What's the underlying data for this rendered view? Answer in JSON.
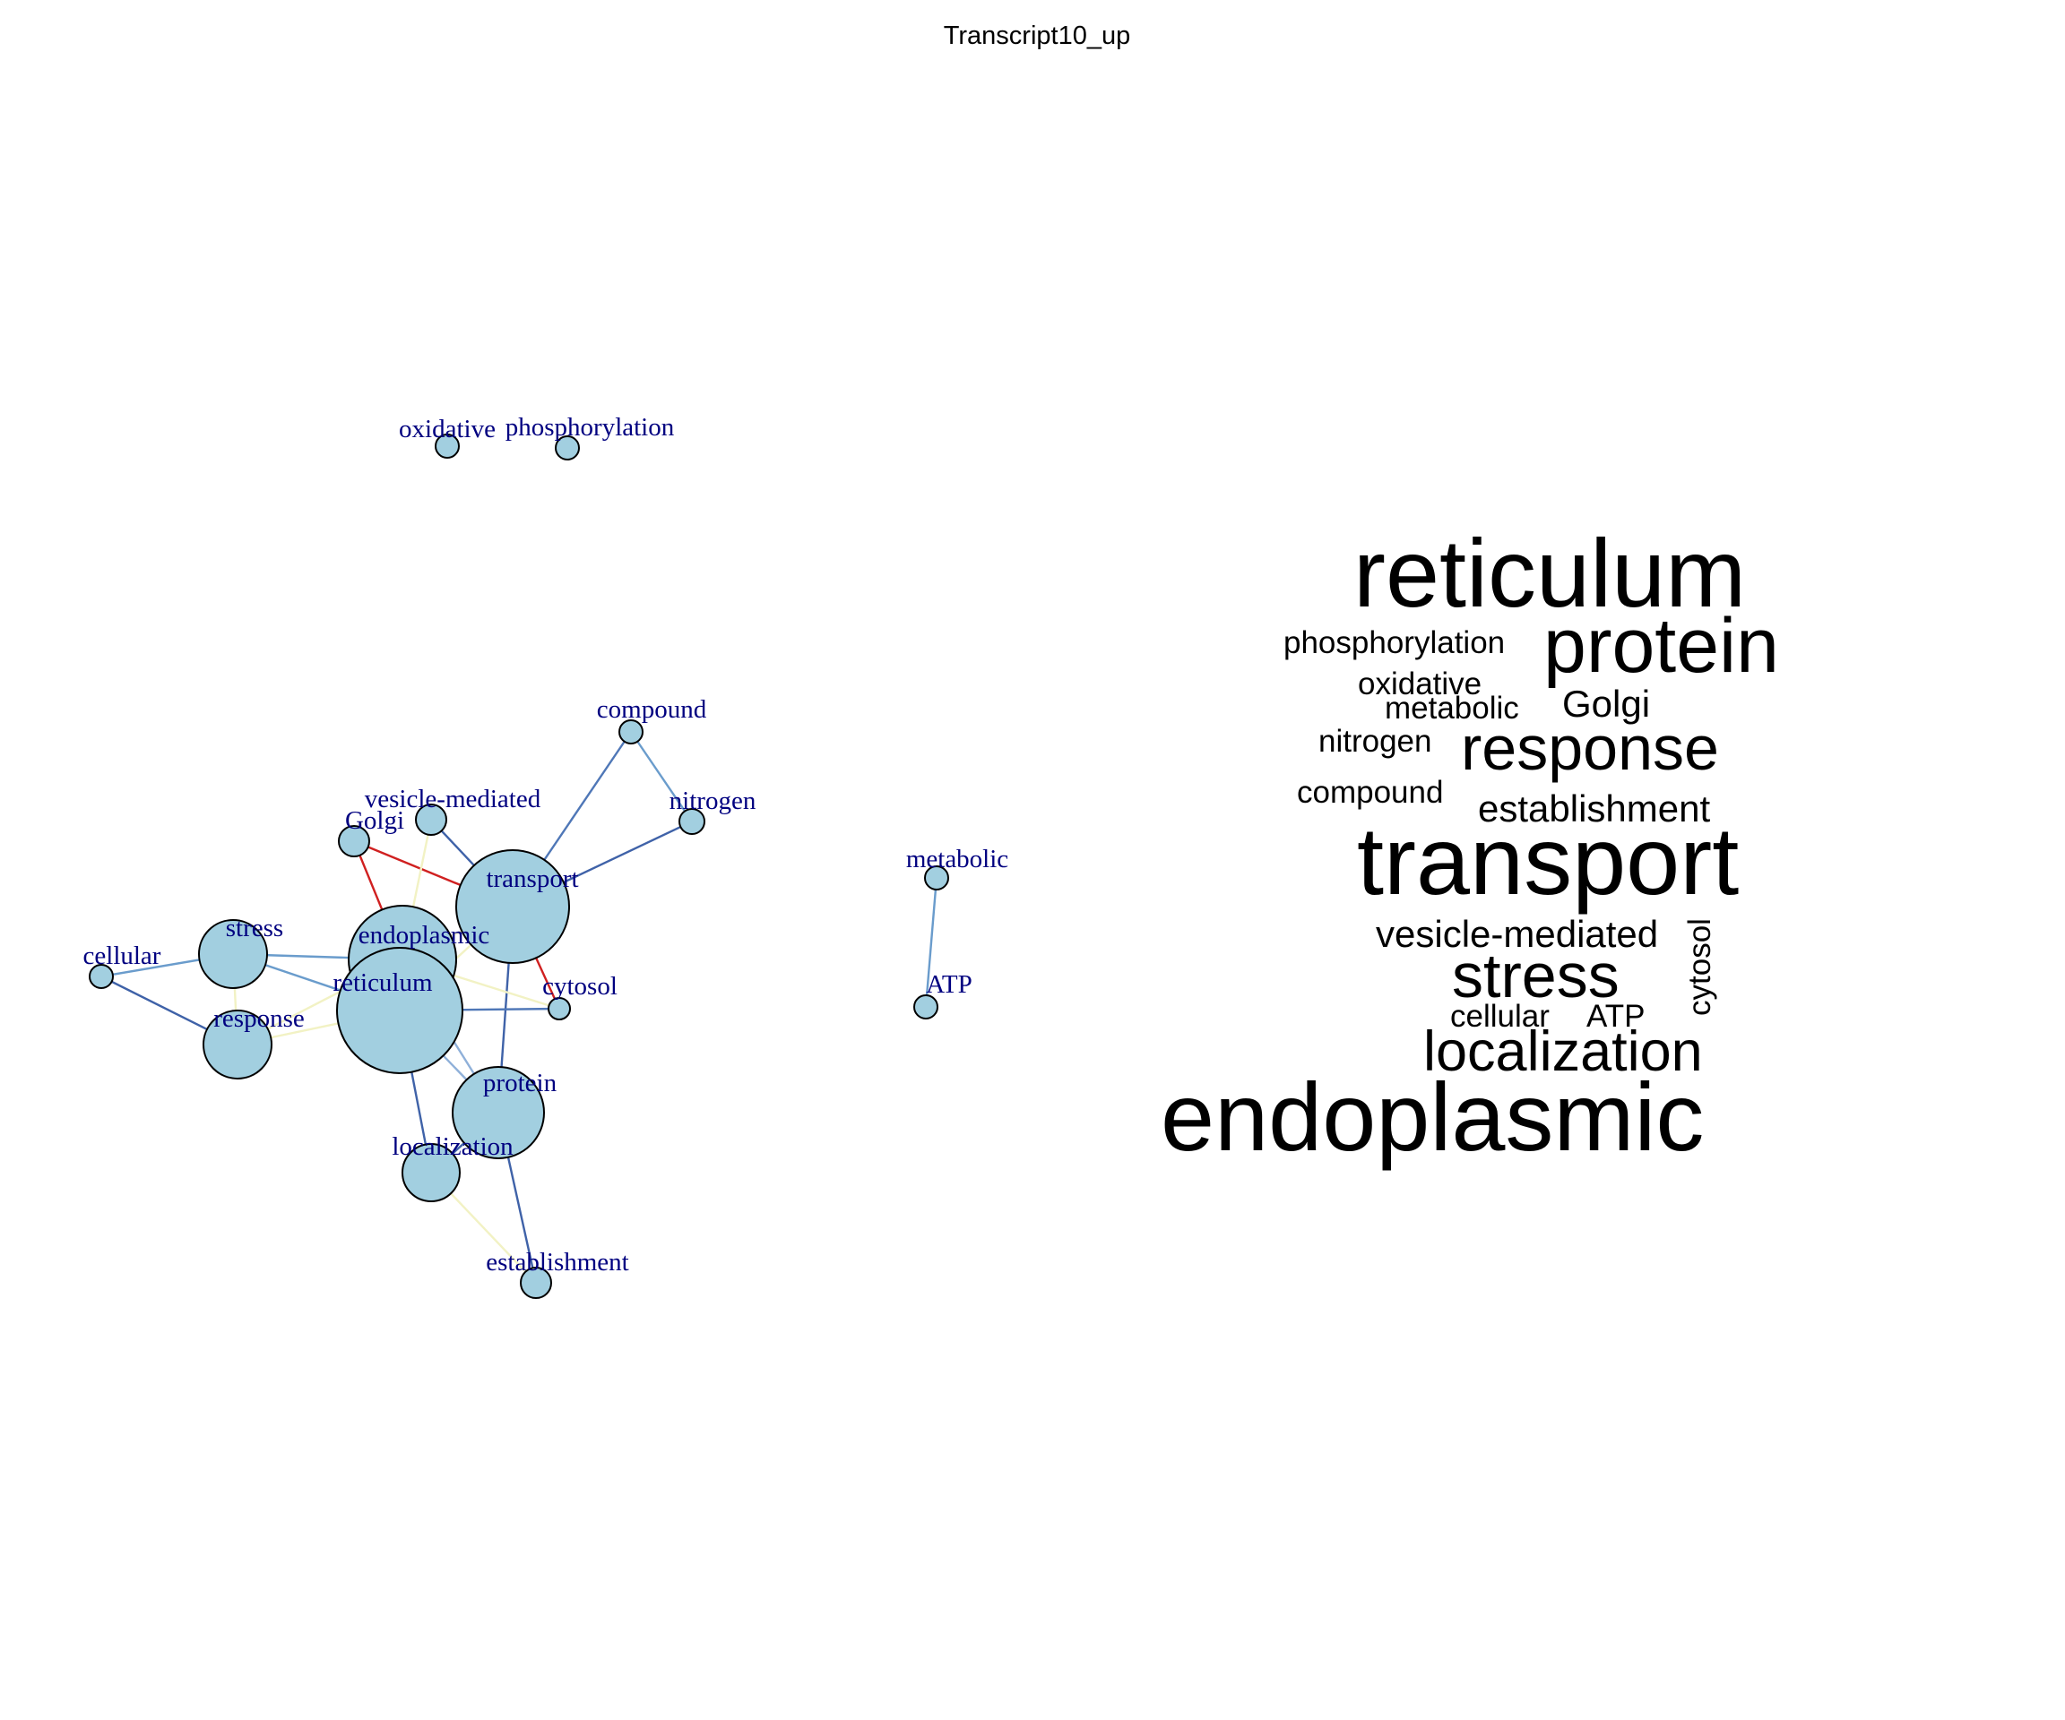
{
  "title": "Transcript10_up",
  "colors": {
    "node_fill": "#a2cfe0",
    "node_stroke": "#000000",
    "label_color": "#000080"
  },
  "network": {
    "nodes": [
      {
        "id": "oxidative",
        "label": "oxidative"
      },
      {
        "id": "phosphorylation",
        "label": "phosphorylation"
      },
      {
        "id": "compound",
        "label": "compound"
      },
      {
        "id": "nitrogen",
        "label": "nitrogen"
      },
      {
        "id": "vesicle-mediated",
        "label": "vesicle-mediated"
      },
      {
        "id": "Golgi",
        "label": "Golgi"
      },
      {
        "id": "transport",
        "label": "transport"
      },
      {
        "id": "metabolic",
        "label": "metabolic"
      },
      {
        "id": "stress",
        "label": "stress"
      },
      {
        "id": "endoplasmic",
        "label": "endoplasmic"
      },
      {
        "id": "cellular",
        "label": "cellular"
      },
      {
        "id": "reticulum",
        "label": "reticulum"
      },
      {
        "id": "cytosol",
        "label": "cytosol"
      },
      {
        "id": "ATP",
        "label": "ATP"
      },
      {
        "id": "response",
        "label": "response"
      },
      {
        "id": "protein",
        "label": "protein"
      },
      {
        "id": "localization",
        "label": "localization"
      },
      {
        "id": "establishment",
        "label": "establishment"
      }
    ],
    "edges": [
      {
        "source": "compound",
        "target": "nitrogen",
        "color": "#6a9ccc"
      },
      {
        "source": "compound",
        "target": "transport",
        "color": "#4f77b7"
      },
      {
        "source": "nitrogen",
        "target": "transport",
        "color": "#3f62a8"
      },
      {
        "source": "Golgi",
        "target": "transport",
        "color": "#d02020"
      },
      {
        "source": "Golgi",
        "target": "endoplasmic",
        "color": "#d02020"
      },
      {
        "source": "vesicle-mediated",
        "target": "transport",
        "color": "#3f62a8"
      },
      {
        "source": "vesicle-mediated",
        "target": "endoplasmic",
        "color": "#f2f2c4"
      },
      {
        "source": "transport",
        "target": "cytosol",
        "color": "#d02020"
      },
      {
        "source": "transport",
        "target": "protein",
        "color": "#3f62a8"
      },
      {
        "source": "transport",
        "target": "endoplasmic",
        "color": "#f2f2c4"
      },
      {
        "source": "transport",
        "target": "reticulum",
        "color": "#f2f2c4"
      },
      {
        "source": "stress",
        "target": "endoplasmic",
        "color": "#6a9ccc"
      },
      {
        "source": "stress",
        "target": "reticulum",
        "color": "#6a9ccc"
      },
      {
        "source": "stress",
        "target": "response",
        "color": "#f2f2c4"
      },
      {
        "source": "cellular",
        "target": "stress",
        "color": "#6a9ccc"
      },
      {
        "source": "cellular",
        "target": "response",
        "color": "#3f62a8"
      },
      {
        "source": "response",
        "target": "reticulum",
        "color": "#f2f2c4"
      },
      {
        "source": "response",
        "target": "endoplasmic",
        "color": "#f2f2c4"
      },
      {
        "source": "endoplasmic",
        "target": "reticulum",
        "color": "#3f62a8"
      },
      {
        "source": "endoplasmic",
        "target": "cytosol",
        "color": "#f2f2c4"
      },
      {
        "source": "reticulum",
        "target": "cytosol",
        "color": "#4f77b7"
      },
      {
        "source": "reticulum",
        "target": "protein",
        "color": "#8fb0d9"
      },
      {
        "source": "reticulum",
        "target": "localization",
        "color": "#3f62a8"
      },
      {
        "source": "endoplasmic",
        "target": "protein",
        "color": "#8fb0d9"
      },
      {
        "source": "protein",
        "target": "localization",
        "color": "#3f62a8"
      },
      {
        "source": "protein",
        "target": "establishment",
        "color": "#3f62a8"
      },
      {
        "source": "localization",
        "target": "establishment",
        "color": "#f2f2c4"
      },
      {
        "source": "metabolic",
        "target": "ATP",
        "color": "#6a9ccc"
      }
    ]
  },
  "wordcloud": {
    "words": [
      {
        "text": "reticulum"
      },
      {
        "text": "protein"
      },
      {
        "text": "phosphorylation"
      },
      {
        "text": "oxidative"
      },
      {
        "text": "metabolic"
      },
      {
        "text": "Golgi"
      },
      {
        "text": "nitrogen"
      },
      {
        "text": "response"
      },
      {
        "text": "compound"
      },
      {
        "text": "establishment"
      },
      {
        "text": "transport"
      },
      {
        "text": "vesicle-mediated"
      },
      {
        "text": "stress"
      },
      {
        "text": "cytosol"
      },
      {
        "text": "cellular"
      },
      {
        "text": "ATP"
      },
      {
        "text": "localization"
      },
      {
        "text": "endoplasmic"
      }
    ]
  }
}
